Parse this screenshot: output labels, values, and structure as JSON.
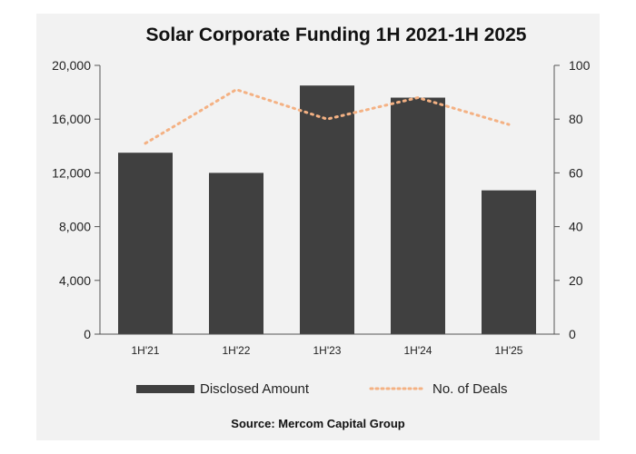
{
  "chart_data": {
    "type": "bar",
    "title": "Solar Corporate Funding 1H 2021-1H 2025",
    "categories": [
      "1H'21",
      "1H'22",
      "1H'23",
      "1H'24",
      "1H'25"
    ],
    "series": [
      {
        "name": "Disclosed Amount",
        "type": "bar",
        "axis": "left",
        "values": [
          13500,
          12000,
          18500,
          17600,
          10700
        ],
        "color": "#404040"
      },
      {
        "name": "No. of Deals",
        "type": "line",
        "axis": "right",
        "line_style": "dotted",
        "values": [
          71,
          91,
          80,
          88,
          78
        ],
        "color": "#f4b183"
      }
    ],
    "y_left": {
      "ylim": [
        0,
        20000
      ],
      "ticks": [
        "0",
        "4,000",
        "8,000",
        "12,000",
        "16,000",
        "20,000"
      ]
    },
    "y_right": {
      "ylim": [
        0,
        100
      ],
      "ticks": [
        "0",
        "20",
        "40",
        "60",
        "80",
        "100"
      ]
    },
    "grid": false,
    "legend": {
      "position": "bottom",
      "labels": [
        "Disclosed Amount",
        "No. of Deals"
      ]
    },
    "source": "Source: Mercom Capital Group"
  },
  "colors": {
    "background": "#f2f2f2",
    "bar": "#404040",
    "line": "#f4b183"
  }
}
